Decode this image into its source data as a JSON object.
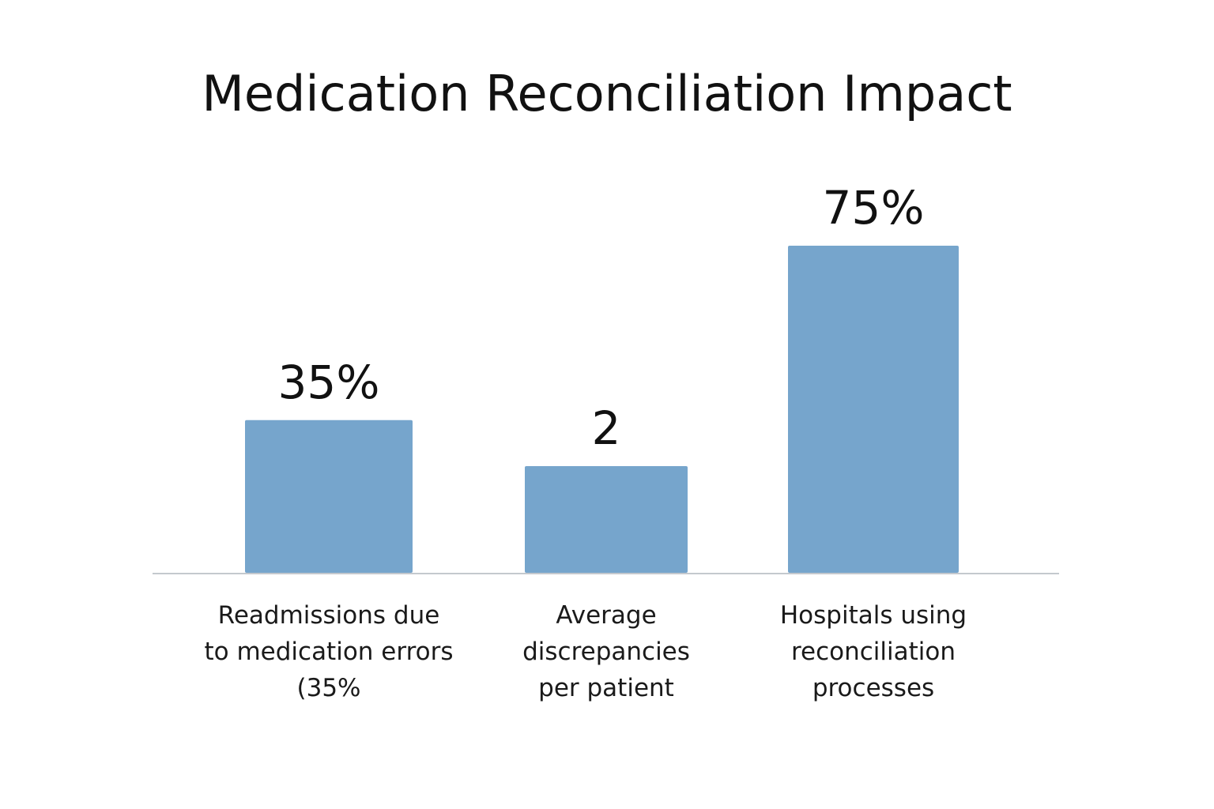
{
  "chart_data": {
    "type": "bar",
    "title": "Medication Reconciliation Impact",
    "categories": [
      "Readmissions due\nto medication errors\n(35%",
      "Average\ndiscrepancies\nper patient",
      "Hospitals using\nreconciliation\nprocesses"
    ],
    "values": [
      35,
      2,
      75
    ],
    "value_labels": [
      "35%",
      "2",
      "75%"
    ],
    "xlabel": "",
    "ylabel": "",
    "grid": false,
    "legend": "none",
    "colors": {
      "bar": "#76a5cc",
      "axis": "#c4c9ce",
      "text": "#111111"
    }
  }
}
